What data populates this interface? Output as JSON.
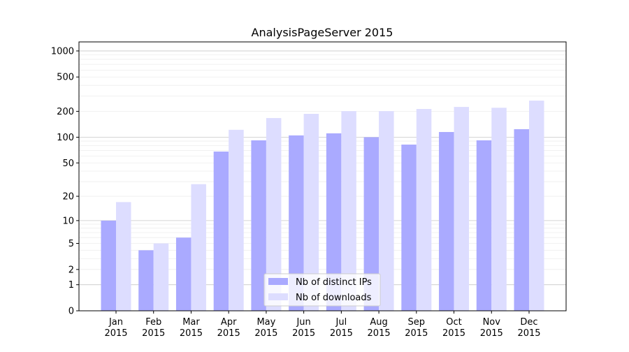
{
  "chart_data": {
    "type": "bar",
    "title": "AnalysisPageServer 2015",
    "xlabel": "",
    "ylabel": "",
    "yscale": "log10(1+y)",
    "ylim": [
      0,
      1300
    ],
    "yticks": [
      0,
      1,
      2,
      5,
      10,
      20,
      50,
      100,
      200,
      500,
      1000
    ],
    "categories": [
      "Jan\n2015",
      "Feb\n2015",
      "Mar\n2015",
      "Apr\n2015",
      "May\n2015",
      "Jun\n2015",
      "Jul\n2015",
      "Aug\n2015",
      "Sep\n2015",
      "Oct\n2015",
      "Nov\n2015",
      "Dec\n2015"
    ],
    "series": [
      {
        "name": "Nb of distinct IPs",
        "color": "#aaaaff",
        "values": [
          10,
          4,
          6,
          68,
          92,
          105,
          111,
          100,
          82,
          115,
          92,
          124
        ]
      },
      {
        "name": "Nb of downloads",
        "color": "#ddddff",
        "values": [
          17,
          5,
          28,
          122,
          167,
          187,
          201,
          201,
          213,
          225,
          220,
          266
        ]
      }
    ],
    "grid": true,
    "legend_position": "bottom-center"
  }
}
